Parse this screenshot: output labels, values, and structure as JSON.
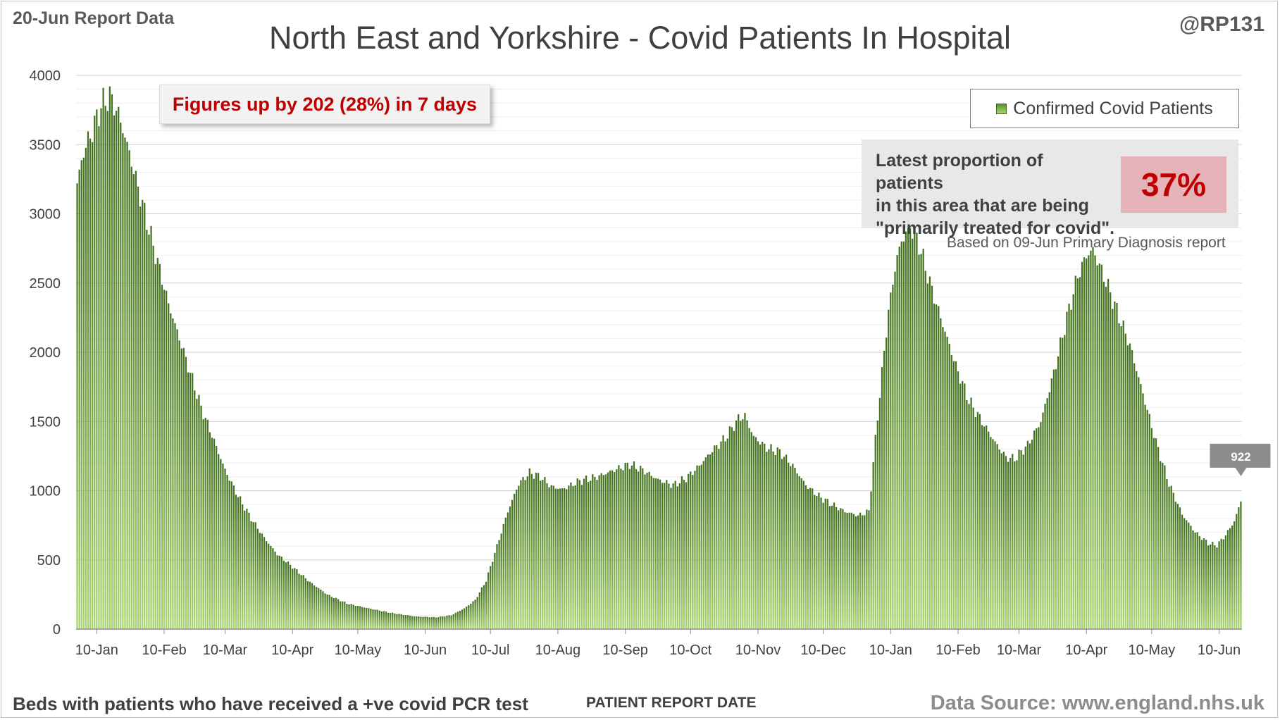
{
  "header": {
    "report_date_label": "20-Jun Report Data",
    "author_handle": "@RP131",
    "title": "North East and Yorkshire - Covid Patients In Hospital"
  },
  "footer": {
    "left_note": "Beds with patients who have received a +ve covid PCR test",
    "x_axis_title": "PATIENT REPORT DATE",
    "data_source": "Data Source: www.england.nhs.uk"
  },
  "callout": {
    "text": "Figures up by 202 (28%) in 7 days"
  },
  "legend": {
    "label": "Confirmed Covid Patients"
  },
  "proportion_box": {
    "lines": [
      "Latest proportion of patients",
      "in this area that are being",
      "\"primarily treated for covid\"."
    ],
    "value": "37%",
    "note": "Based on 09-Jun Primary Diagnosis report"
  },
  "colors": {
    "bar_dark": "#3f6e1c",
    "bar_light": "#a8d46f",
    "callout_text": "#c00000",
    "value_box": "#e6b4b8",
    "gridline": "#d9d9d9"
  },
  "chart_data": {
    "type": "bar",
    "series_name": "Confirmed Covid Patients",
    "ylim": [
      0,
      4000
    ],
    "yticks": [
      0,
      500,
      1000,
      1500,
      2000,
      2500,
      3000,
      3500,
      4000
    ],
    "grid": true,
    "legend_position": "top-right",
    "x_tick_labels": [
      "10-Jan",
      "10-Feb",
      "10-Mar",
      "10-Apr",
      "10-May",
      "10-Jun",
      "10-Jul",
      "10-Aug",
      "10-Sep",
      "10-Oct",
      "10-Nov",
      "10-Dec",
      "10-Jan",
      "10-Feb",
      "10-Mar",
      "10-Apr",
      "10-May",
      "10-Jun"
    ],
    "start_date": "2021-01-01",
    "end_date": "2022-06-20",
    "profile_points": [
      [
        "2021-01-01",
        3220
      ],
      [
        "2021-01-04",
        3450
      ],
      [
        "2021-01-08",
        3600
      ],
      [
        "2021-01-12",
        3780
      ],
      [
        "2021-01-16",
        3850
      ],
      [
        "2021-01-20",
        3720
      ],
      [
        "2021-01-24",
        3500
      ],
      [
        "2021-01-28",
        3250
      ],
      [
        "2021-02-02",
        2950
      ],
      [
        "2021-02-07",
        2650
      ],
      [
        "2021-02-12",
        2350
      ],
      [
        "2021-02-17",
        2100
      ],
      [
        "2021-02-22",
        1850
      ],
      [
        "2021-02-27",
        1600
      ],
      [
        "2021-03-04",
        1400
      ],
      [
        "2021-03-10",
        1150
      ],
      [
        "2021-03-16",
        960
      ],
      [
        "2021-03-22",
        800
      ],
      [
        "2021-03-28",
        660
      ],
      [
        "2021-04-03",
        540
      ],
      [
        "2021-04-10",
        450
      ],
      [
        "2021-04-18",
        340
      ],
      [
        "2021-04-26",
        250
      ],
      [
        "2021-05-05",
        185
      ],
      [
        "2021-05-15",
        150
      ],
      [
        "2021-05-25",
        118
      ],
      [
        "2021-06-05",
        92
      ],
      [
        "2021-06-15",
        85
      ],
      [
        "2021-06-22",
        100
      ],
      [
        "2021-06-28",
        150
      ],
      [
        "2021-07-03",
        210
      ],
      [
        "2021-07-08",
        350
      ],
      [
        "2021-07-13",
        600
      ],
      [
        "2021-07-18",
        850
      ],
      [
        "2021-07-23",
        1050
      ],
      [
        "2021-07-28",
        1130
      ],
      [
        "2021-08-02",
        1100
      ],
      [
        "2021-08-07",
        1030
      ],
      [
        "2021-08-12",
        1010
      ],
      [
        "2021-08-20",
        1070
      ],
      [
        "2021-08-28",
        1100
      ],
      [
        "2021-09-05",
        1150
      ],
      [
        "2021-09-12",
        1190
      ],
      [
        "2021-09-18",
        1150
      ],
      [
        "2021-09-25",
        1080
      ],
      [
        "2021-10-02",
        1040
      ],
      [
        "2021-10-08",
        1090
      ],
      [
        "2021-10-14",
        1180
      ],
      [
        "2021-10-20",
        1290
      ],
      [
        "2021-10-26",
        1380
      ],
      [
        "2021-11-01",
        1520
      ],
      [
        "2021-11-04",
        1540
      ],
      [
        "2021-11-08",
        1390
      ],
      [
        "2021-11-14",
        1310
      ],
      [
        "2021-11-20",
        1280
      ],
      [
        "2021-11-26",
        1180
      ],
      [
        "2021-12-02",
        1040
      ],
      [
        "2021-12-08",
        960
      ],
      [
        "2021-12-14",
        900
      ],
      [
        "2021-12-20",
        850
      ],
      [
        "2021-12-26",
        820
      ],
      [
        "2021-12-31",
        850
      ],
      [
        "2022-01-02",
        1200
      ],
      [
        "2022-01-05",
        1700
      ],
      [
        "2022-01-09",
        2300
      ],
      [
        "2022-01-13",
        2700
      ],
      [
        "2022-01-17",
        2880
      ],
      [
        "2022-01-19",
        2920
      ],
      [
        "2022-01-23",
        2780
      ],
      [
        "2022-01-28",
        2500
      ],
      [
        "2022-02-03",
        2200
      ],
      [
        "2022-02-09",
        1900
      ],
      [
        "2022-02-15",
        1650
      ],
      [
        "2022-02-21",
        1500
      ],
      [
        "2022-02-27",
        1350
      ],
      [
        "2022-03-04",
        1240
      ],
      [
        "2022-03-08",
        1230
      ],
      [
        "2022-03-14",
        1330
      ],
      [
        "2022-03-20",
        1500
      ],
      [
        "2022-03-26",
        1850
      ],
      [
        "2022-04-01",
        2250
      ],
      [
        "2022-04-06",
        2550
      ],
      [
        "2022-04-10",
        2700
      ],
      [
        "2022-04-13",
        2740
      ],
      [
        "2022-04-18",
        2550
      ],
      [
        "2022-04-24",
        2300
      ],
      [
        "2022-04-30",
        2050
      ],
      [
        "2022-05-06",
        1700
      ],
      [
        "2022-05-12",
        1350
      ],
      [
        "2022-05-18",
        1050
      ],
      [
        "2022-05-24",
        830
      ],
      [
        "2022-05-30",
        700
      ],
      [
        "2022-06-05",
        620
      ],
      [
        "2022-06-09",
        605
      ],
      [
        "2022-06-13",
        680
      ],
      [
        "2022-06-17",
        780
      ],
      [
        "2022-06-20",
        922
      ]
    ],
    "last_value": 922,
    "last_value_label": "922"
  }
}
